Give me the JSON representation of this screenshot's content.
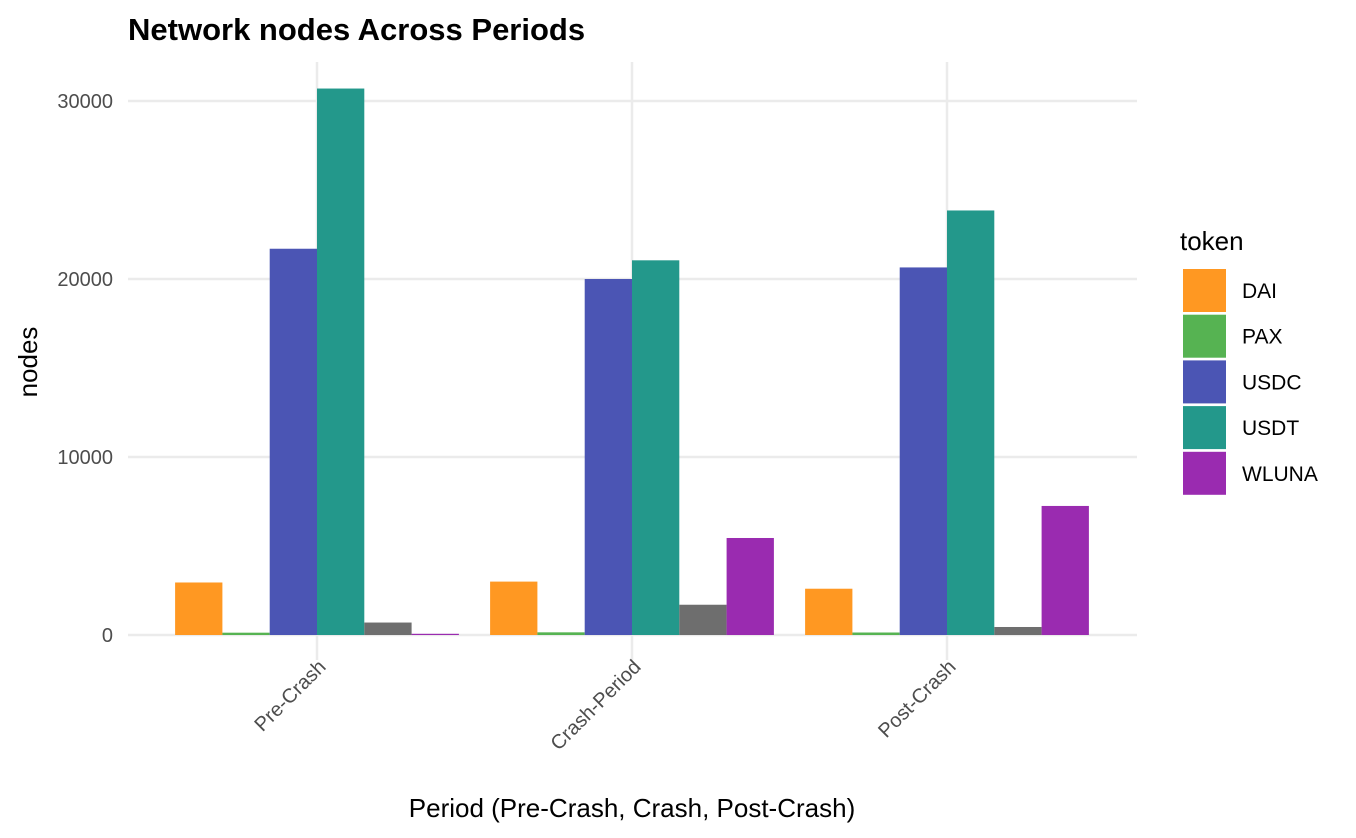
{
  "chart_data": {
    "type": "bar",
    "title": "Network nodes Across Periods",
    "xlabel": "Period (Pre-Crash, Crash, Post-Crash)",
    "ylabel": "nodes",
    "categories": [
      "Pre-Crash",
      "Crash-Period",
      "Post-Crash"
    ],
    "ylim": [
      0,
      32000
    ],
    "yticks": [
      0,
      10000,
      20000,
      30000
    ],
    "ytick_labels": [
      "0",
      "10000",
      "20000",
      "30000"
    ],
    "grid": true,
    "legend": {
      "title": "token",
      "placement": "right"
    },
    "series": [
      {
        "name": "DAI",
        "color": "#FF9822",
        "values": [
          2950,
          3000,
          2600
        ],
        "in_legend": true
      },
      {
        "name": "PAX",
        "color": "#56B352",
        "values": [
          130,
          150,
          140
        ],
        "in_legend": true
      },
      {
        "name": "USDC",
        "color": "#4B55B4",
        "values": [
          21700,
          20000,
          20650
        ],
        "in_legend": true
      },
      {
        "name": "USDT",
        "color": "#23988B",
        "values": [
          30700,
          21050,
          23850
        ],
        "in_legend": true
      },
      {
        "name": "",
        "color": "#6E6E6E",
        "values": [
          700,
          1700,
          450
        ],
        "in_legend": false
      },
      {
        "name": "WLUNA",
        "color": "#9A2BB0",
        "values": [
          30,
          5450,
          7250
        ],
        "in_legend": true
      }
    ]
  }
}
